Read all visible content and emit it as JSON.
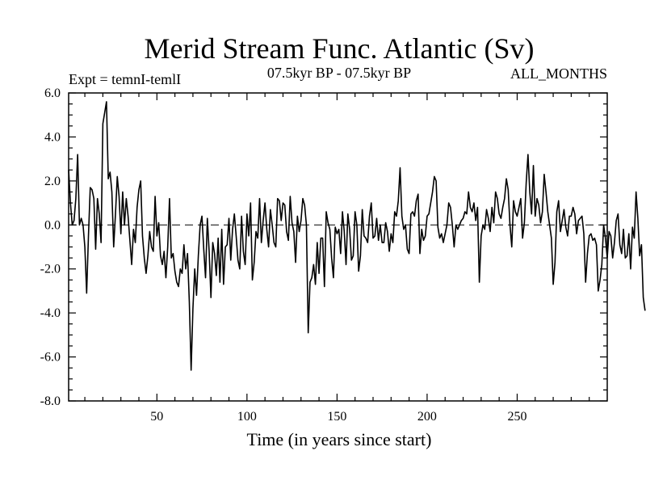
{
  "chart_data": {
    "type": "line",
    "title": "Merid Stream Func. Atlantic (Sv)",
    "subtitle_left": "Expt = temnI-temlI",
    "subtitle_center": "07.5kyr BP - 07.5kyr BP",
    "subtitle_right": "ALL_MONTHS",
    "xlabel": "Time (in years since start)",
    "ylabel": "",
    "xlim": [
      1,
      300
    ],
    "ylim": [
      -8,
      6
    ],
    "x_ticks": [
      50,
      100,
      150,
      200,
      250
    ],
    "y_ticks": [
      6,
      4,
      2,
      0,
      -2,
      -4,
      -6,
      -8
    ],
    "x_tick_labels": [
      "50",
      "100",
      "150",
      "200",
      "250"
    ],
    "y_tick_labels": [
      "6.0",
      "4.0",
      "2.0",
      "0.0",
      "-2.0",
      "-4.0",
      "-6.0",
      "-8.0"
    ],
    "reference_line": 0,
    "grid": false,
    "series": [
      {
        "name": "Merid Stream Func. Atlantic",
        "x_start": 1,
        "x_step": 1,
        "values": [
          2.5,
          1.0,
          0.0,
          0.2,
          1.2,
          3.2,
          0.0,
          0.3,
          0.0,
          -1.0,
          -3.1,
          -0.5,
          1.7,
          1.6,
          1.2,
          -1.1,
          1.2,
          0.5,
          -0.8,
          4.6,
          5.1,
          5.6,
          2.1,
          2.4,
          1.5,
          -1.0,
          0.5,
          2.2,
          1.3,
          -0.4,
          1.5,
          0.0,
          1.2,
          0.4,
          -0.7,
          -1.8,
          -0.2,
          -0.8,
          0.8,
          1.6,
          2.0,
          -0.5,
          -1.5,
          -2.2,
          -1.4,
          -0.3,
          -1.0,
          -1.2,
          1.3,
          -0.5,
          0.1,
          -1.4,
          -1.8,
          -1.2,
          -2.4,
          -1.0,
          1.2,
          -1.5,
          -1.3,
          -2.1,
          -2.6,
          -2.8,
          -2.0,
          -2.2,
          -0.9,
          -2.0,
          -1.3,
          -3.5,
          -6.6,
          -3.8,
          -2.0,
          -3.2,
          -1.4,
          0.0,
          0.4,
          -1.1,
          -2.4,
          0.3,
          -1.2,
          -3.3,
          -0.8,
          -1.3,
          -2.3,
          -0.6,
          -2.6,
          -0.2,
          -2.7,
          -1.0,
          -0.9,
          0.3,
          -1.6,
          -0.2,
          0.5,
          -0.5,
          -1.6,
          -2.0,
          0.4,
          -1.2,
          -1.8,
          0.5,
          -0.5,
          1.0,
          -2.5,
          -1.7,
          -0.3,
          -0.6,
          1.2,
          -0.8,
          0.2,
          1.0,
          -0.2,
          -1.0,
          0.7,
          0.0,
          -0.8,
          -1.0,
          1.2,
          1.1,
          0.2,
          1.0,
          0.9,
          -0.3,
          -0.7,
          1.3,
          0.1,
          -0.3,
          -1.7,
          0.4,
          -0.3,
          0.2,
          1.2,
          0.9,
          0.0,
          -4.9,
          -2.6,
          -2.4,
          -1.8,
          -2.7,
          -0.8,
          -2.2,
          -0.6,
          -0.6,
          -2.8,
          0.6,
          0.1,
          -0.2,
          -1.5,
          -2.4,
          -0.1,
          -0.4,
          -0.2,
          -1.3,
          0.6,
          -0.3,
          -1.8,
          0.5,
          -0.2,
          -1.6,
          -1.4,
          0.6,
          0.0,
          -2.1,
          -1.4,
          0.7,
          -0.5,
          -0.6,
          -0.8,
          0.4,
          1.0,
          -0.6,
          -0.5,
          0.3,
          -0.7,
          0.0,
          -0.8,
          -0.8,
          0.1,
          -0.3,
          -1.2,
          -0.4,
          -0.8,
          0.6,
          0.4,
          1.1,
          2.6,
          0.4,
          -0.2,
          0.0,
          -1.1,
          -1.3,
          0.5,
          0.6,
          0.4,
          1.1,
          1.4,
          -1.3,
          -0.2,
          -0.7,
          -0.5,
          0.4,
          0.5,
          1.0,
          1.5,
          2.2,
          2.0,
          -0.1,
          -0.6,
          -0.4,
          -0.8,
          -0.4,
          0.0,
          1.0,
          0.8,
          0.0,
          -1.0,
          0.0,
          -0.2,
          0.0,
          0.2,
          0.3,
          0.6,
          0.5,
          1.5,
          0.8,
          0.6,
          1.0,
          0.2,
          0.8,
          -2.6,
          -0.5,
          0.0,
          -0.2,
          0.7,
          0.3,
          -0.3,
          0.8,
          0.1,
          1.5,
          1.2,
          0.5,
          0.3,
          0.8,
          1.2,
          2.1,
          1.6,
          0.0,
          -1.0,
          1.1,
          0.6,
          0.4,
          0.8,
          1.2,
          -0.6,
          0.1,
          1.9,
          3.2,
          1.5,
          0.5,
          2.7,
          0.4,
          1.2,
          0.9,
          0.1,
          0.6,
          2.3,
          1.5,
          0.6,
          0.0,
          -0.6,
          -2.7,
          -1.7,
          0.6,
          1.1,
          -0.3,
          0.2,
          0.7,
          -0.1,
          -0.5,
          0.4,
          0.4,
          0.8,
          0.5,
          -0.4,
          0.2,
          0.3,
          0.4,
          -0.4,
          -2.6,
          -1.3,
          -0.5,
          -0.4,
          -0.7,
          -0.6,
          -0.9,
          -3.0,
          -2.5,
          -1.8,
          0.0,
          -0.6,
          -1.5,
          -0.3,
          -0.5,
          -1.5,
          -0.8,
          0.2,
          0.5,
          -0.9,
          -1.3,
          -0.2,
          -1.5,
          -1.4,
          -0.4,
          -2.0,
          -0.1,
          -0.6,
          1.5,
          0.3,
          -1.4,
          -0.9,
          -3.3,
          -3.9
        ]
      }
    ]
  }
}
